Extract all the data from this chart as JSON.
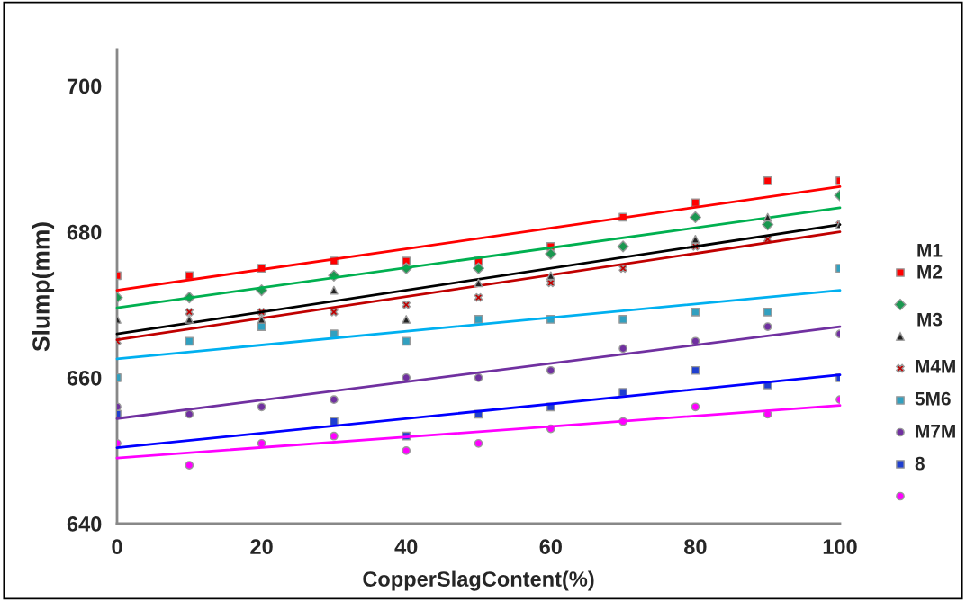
{
  "chart_data": {
    "type": "scatter",
    "xlabel": "CopperSlagContent(%)",
    "ylabel": "Slump(mm)",
    "x": [
      0,
      10,
      20,
      30,
      40,
      50,
      60,
      70,
      80,
      90,
      100
    ],
    "xlim": [
      0,
      100
    ],
    "xticks": [
      0,
      20,
      40,
      60,
      80,
      100
    ],
    "ylim": [
      640,
      705
    ],
    "yticks": [
      640,
      660,
      680,
      700
    ],
    "grid": false,
    "annotations": [
      "M1",
      "M2",
      "M3",
      "M4M",
      "5M6",
      "M7M",
      "8"
    ],
    "series": [
      {
        "marker": "square",
        "color": "#ff0000",
        "values": [
          674,
          674,
          675,
          676,
          676,
          676,
          678,
          682,
          684,
          687,
          687
        ]
      },
      {
        "type": "scatter",
        "marker": "diamond",
        "color": "#1a9850",
        "values": [
          671,
          671,
          672,
          674,
          675,
          675,
          677,
          678,
          682,
          681,
          685
        ]
      },
      {
        "type": "scatter",
        "marker": "triangle",
        "color": "#222222",
        "values": [
          668,
          668,
          668,
          672,
          668,
          673,
          674,
          null,
          679,
          682,
          681
        ]
      },
      {
        "type": "scatter",
        "marker": "cross",
        "color": "#c00000",
        "values": [
          665,
          669,
          669,
          669,
          670,
          671,
          673,
          675,
          678,
          679,
          681
        ]
      },
      {
        "type": "scatter",
        "marker": "square",
        "color": "#31a0c0",
        "values": [
          660,
          665,
          667,
          666,
          665,
          668,
          668,
          668,
          669,
          669,
          675
        ]
      },
      {
        "type": "scatter",
        "marker": "circle",
        "color": "#7030a0",
        "values": [
          656,
          655,
          656,
          657,
          660,
          660,
          661,
          664,
          665,
          667,
          666
        ]
      },
      {
        "type": "scatter",
        "marker": "square",
        "color": "#1f3fd0",
        "values": [
          655,
          null,
          null,
          654,
          652,
          655,
          656,
          658,
          661,
          659,
          660
        ]
      },
      {
        "type": "scatter",
        "marker": "circle",
        "color": "#ff00ff",
        "values": [
          651,
          648,
          651,
          652,
          650,
          651,
          653,
          654,
          656,
          655,
          657
        ]
      },
      {
        "type": "line",
        "color": "#ff0000",
        "values": [
          672,
          null,
          null,
          null,
          null,
          null,
          null,
          null,
          null,
          null,
          686.2
        ]
      },
      {
        "type": "line",
        "color": "#00b050",
        "values": [
          669.6,
          null,
          null,
          null,
          null,
          null,
          null,
          null,
          null,
          null,
          683.3
        ]
      },
      {
        "type": "line",
        "color": "#000000",
        "values": [
          666,
          null,
          null,
          null,
          null,
          null,
          null,
          null,
          null,
          null,
          681
        ]
      },
      {
        "type": "line",
        "color": "#c00000",
        "values": [
          665.2,
          null,
          null,
          null,
          null,
          null,
          null,
          null,
          null,
          null,
          680
        ]
      },
      {
        "type": "line",
        "color": "#00b0f0",
        "values": [
          662.6,
          null,
          null,
          null,
          null,
          null,
          null,
          null,
          null,
          null,
          672
        ]
      },
      {
        "type": "line",
        "color": "#7030a0",
        "values": [
          654.4,
          null,
          null,
          null,
          null,
          null,
          null,
          null,
          null,
          null,
          667
        ]
      },
      {
        "type": "line",
        "color": "#0000ff",
        "values": [
          650.4,
          null,
          null,
          null,
          null,
          null,
          null,
          null,
          null,
          null,
          660.4
        ]
      },
      {
        "type": "line",
        "color": "#ff00ff",
        "values": [
          649,
          null,
          null,
          null,
          null,
          null,
          null,
          null,
          null,
          null,
          656.2
        ]
      }
    ]
  }
}
